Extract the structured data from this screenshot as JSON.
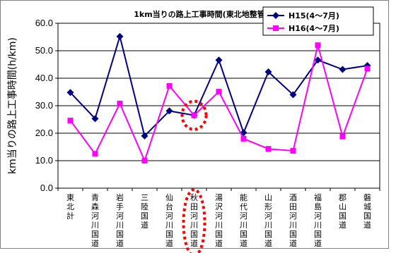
{
  "chart_data": {
    "type": "line",
    "title": "1km当りの路上工事時間(東北地整管内)",
    "ylabel": "km当りの路上工事時間(h/km)",
    "xlabel": "",
    "ylim": [
      0,
      60
    ],
    "yticks": [
      "0.0",
      "10.0",
      "20.0",
      "30.0",
      "40.0",
      "50.0",
      "60.0"
    ],
    "grid": true,
    "legend_position": "top-right",
    "categories": [
      "東北計",
      "青森河川国道",
      "岩手河川国道",
      "三陸国道",
      "仙台河川国道",
      "秋田河川国道",
      "湯沢河川国道",
      "能代河川国道",
      "山形河川国道",
      "酒田河川国道",
      "福島河川国道",
      "郡山国道",
      "磐城国道"
    ],
    "highlighted_category": "秋田河川国道",
    "series": [
      {
        "name": "H15(4～7月)",
        "color": "#000080",
        "marker": "diamond",
        "values": [
          34.8,
          25.3,
          55.2,
          19.0,
          28.1,
          26.5,
          46.6,
          20.2,
          42.3,
          34.0,
          46.6,
          43.2,
          44.6
        ]
      },
      {
        "name": "H16(4～7月)",
        "color": "#ff00ff",
        "marker": "square",
        "values": [
          24.6,
          12.5,
          30.8,
          10.0,
          37.2,
          26.5,
          35.1,
          18.0,
          14.3,
          13.6,
          52.0,
          18.8,
          43.5
        ]
      }
    ]
  }
}
